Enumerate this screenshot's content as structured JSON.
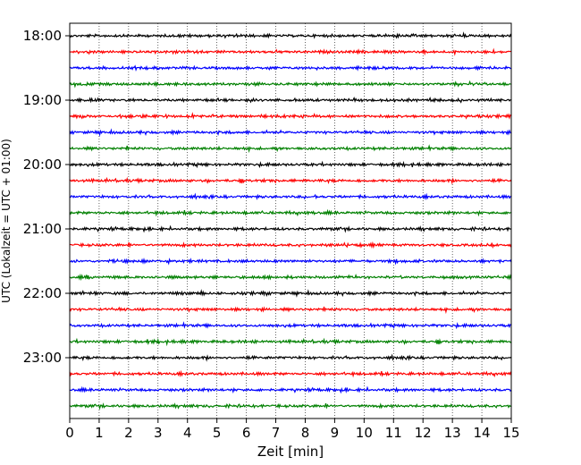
{
  "chart_data": {
    "type": "line",
    "xlabel": "Zeit  [min]",
    "ylabel": "UTC (Lokalzeit = UTC + 01:00)",
    "xlim": [
      0,
      15
    ],
    "x_ticks": [
      "0",
      "1",
      "2",
      "3",
      "4",
      "5",
      "6",
      "7",
      "8",
      "9",
      "10",
      "11",
      "12",
      "13",
      "14",
      "15"
    ],
    "y_tick_labels": [
      "18:00",
      "19:00",
      "20:00",
      "21:00",
      "22:00",
      "23:00"
    ],
    "grid": "vertical dotted lines at each minute",
    "trace_minutes": 15,
    "trace_start": "18:00",
    "trace_count": 24,
    "trace_colors": [
      "#000000",
      "#ff0000",
      "#0000ff",
      "#008000"
    ]
  }
}
